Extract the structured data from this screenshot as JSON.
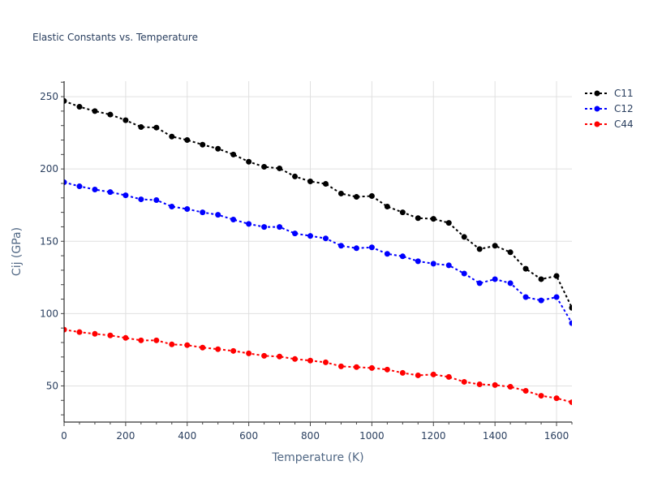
{
  "chart_data": {
    "type": "line",
    "title": "Elastic Constants vs. Temperature",
    "xlabel": "Temperature (K)",
    "ylabel": "Cij (GPa)",
    "xlim": [
      0,
      1650
    ],
    "ylim": [
      25,
      260.7
    ],
    "xticks": [
      0,
      200,
      400,
      600,
      800,
      1000,
      1200,
      1400,
      1600
    ],
    "xtick_labels": [
      "0",
      "200",
      "400",
      "600",
      "800",
      "1000",
      "1200",
      "1400",
      "1600"
    ],
    "yticks": [
      50,
      100,
      150,
      200,
      250
    ],
    "ytick_labels": [
      "50",
      "100",
      "150",
      "200",
      "250"
    ],
    "grid": true,
    "legend_position": "top-right",
    "x": [
      0,
      50,
      100,
      150,
      200,
      250,
      300,
      350,
      400,
      450,
      500,
      550,
      600,
      650,
      700,
      750,
      800,
      850,
      900,
      950,
      1000,
      1050,
      1100,
      1150,
      1200,
      1250,
      1300,
      1350,
      1400,
      1450,
      1500,
      1550,
      1600,
      1650
    ],
    "series": [
      {
        "name": "C11",
        "color": "#000000",
        "values": [
          247,
          243,
          240,
          237.6,
          233.7,
          229,
          228.6,
          222.4,
          220,
          216.8,
          214,
          210,
          205,
          201.5,
          200.4,
          194.8,
          191.4,
          189.7,
          183,
          180.7,
          181.3,
          174,
          170,
          166,
          165.5,
          162.7,
          153,
          144.6,
          146.9,
          142.4,
          131,
          123.8,
          126,
          104
        ]
      },
      {
        "name": "C12",
        "color": "#0000ff",
        "values": [
          190.8,
          188,
          185.8,
          184,
          181.8,
          179,
          178.5,
          174,
          172.3,
          170,
          168.3,
          165,
          162,
          159.9,
          159.9,
          155.4,
          153.7,
          152,
          146.9,
          145.2,
          145.8,
          141.3,
          139.6,
          136.2,
          134.5,
          133.4,
          127.7,
          121,
          123.8,
          121,
          111.4,
          109.1,
          111.4,
          93.4
        ]
      },
      {
        "name": "C44",
        "color": "#ff0000",
        "values": [
          88.9,
          87.2,
          86,
          84.9,
          83.2,
          81.5,
          81.5,
          78.7,
          78.2,
          76.5,
          75.4,
          74.2,
          72.5,
          70.8,
          70.3,
          68.6,
          67.5,
          66.3,
          63.5,
          63,
          62.4,
          61.3,
          59,
          57.3,
          57.9,
          56.2,
          52.8,
          51.1,
          50.6,
          49.4,
          46.6,
          43.2,
          41.5,
          38.7
        ]
      }
    ]
  }
}
